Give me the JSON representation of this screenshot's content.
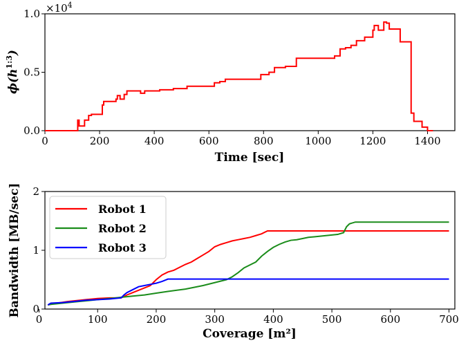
{
  "chart_data": [
    {
      "type": "line",
      "title": "",
      "xlabel": "Time [sec]",
      "ylabel": "ϕ(h^{1:3})",
      "y_multiplier_label": "×10",
      "y_multiplier_exp": "4",
      "xlim": [
        0,
        1500
      ],
      "ylim": [
        0,
        1.0
      ],
      "xticks": [
        0,
        200,
        400,
        600,
        800,
        1000,
        1200,
        1400
      ],
      "yticks": [
        0.0,
        0.5,
        1.0
      ],
      "ytick_labels": [
        "0.0",
        "0.5",
        "1.0"
      ],
      "color": "#ff0000",
      "series": [
        {
          "step": true,
          "x": [
            0,
            120,
            125,
            145,
            160,
            170,
            210,
            215,
            260,
            265,
            275,
            290,
            300,
            350,
            365,
            420,
            470,
            520,
            620,
            640,
            660,
            780,
            790,
            820,
            840,
            880,
            920,
            1060,
            1080,
            1100,
            1120,
            1140,
            1170,
            1200,
            1205,
            1220,
            1240,
            1250,
            1260,
            1300,
            1340,
            1350,
            1380,
            1400,
            1420
          ],
          "y": [
            0,
            0.09,
            0.04,
            0.09,
            0.13,
            0.14,
            0.22,
            0.25,
            0.27,
            0.3,
            0.27,
            0.31,
            0.34,
            0.32,
            0.34,
            0.35,
            0.36,
            0.38,
            0.41,
            0.42,
            0.44,
            0.44,
            0.48,
            0.5,
            0.54,
            0.55,
            0.62,
            0.64,
            0.7,
            0.71,
            0.73,
            0.77,
            0.8,
            0.86,
            0.9,
            0.86,
            0.93,
            0.92,
            0.87,
            0.76,
            0.15,
            0.08,
            0.03,
            0.0,
            0.0
          ]
        }
      ]
    },
    {
      "type": "line",
      "title": "",
      "xlabel": "Coverage [m²]",
      "ylabel": "Bandwidth [MB/sec]",
      "xlim": [
        10,
        710
      ],
      "ylim": [
        0,
        2
      ],
      "xticks": [
        0,
        100,
        200,
        300,
        400,
        500,
        600,
        700
      ],
      "yticks": [
        0,
        1,
        2
      ],
      "legend": "top-left",
      "series": [
        {
          "name": "Robot 1",
          "color": "#ff0000",
          "x": [
            15,
            20,
            30,
            50,
            80,
            100,
            120,
            140,
            150,
            160,
            170,
            180,
            190,
            200,
            210,
            220,
            230,
            240,
            250,
            260,
            270,
            280,
            290,
            300,
            310,
            320,
            330,
            340,
            350,
            360,
            370,
            380,
            390,
            700
          ],
          "y": [
            0.07,
            0.08,
            0.1,
            0.13,
            0.16,
            0.18,
            0.19,
            0.19,
            0.24,
            0.28,
            0.32,
            0.36,
            0.4,
            0.5,
            0.58,
            0.63,
            0.66,
            0.71,
            0.76,
            0.8,
            0.86,
            0.92,
            0.98,
            1.06,
            1.1,
            1.13,
            1.16,
            1.18,
            1.2,
            1.22,
            1.25,
            1.28,
            1.33,
            1.33
          ]
        },
        {
          "name": "Robot 2",
          "color": "#1a8c1a",
          "x": [
            15,
            20,
            40,
            60,
            80,
            100,
            120,
            140,
            160,
            180,
            200,
            220,
            250,
            280,
            300,
            320,
            330,
            340,
            350,
            360,
            370,
            380,
            390,
            400,
            410,
            420,
            430,
            440,
            450,
            460,
            470,
            480,
            490,
            500,
            510,
            520,
            525,
            530,
            540,
            700
          ],
          "y": [
            0.07,
            0.08,
            0.1,
            0.12,
            0.14,
            0.16,
            0.18,
            0.2,
            0.22,
            0.24,
            0.27,
            0.3,
            0.34,
            0.4,
            0.45,
            0.5,
            0.55,
            0.62,
            0.7,
            0.75,
            0.8,
            0.9,
            0.98,
            1.05,
            1.1,
            1.14,
            1.17,
            1.18,
            1.2,
            1.22,
            1.23,
            1.24,
            1.25,
            1.26,
            1.27,
            1.3,
            1.4,
            1.45,
            1.48,
            1.48
          ]
        },
        {
          "name": "Robot 3",
          "color": "#0000ff",
          "x": [
            15,
            20,
            40,
            60,
            80,
            100,
            120,
            140,
            145,
            150,
            160,
            170,
            180,
            190,
            200,
            210,
            220,
            700
          ],
          "y": [
            0.07,
            0.1,
            0.11,
            0.13,
            0.15,
            0.16,
            0.17,
            0.19,
            0.24,
            0.28,
            0.33,
            0.38,
            0.4,
            0.42,
            0.44,
            0.47,
            0.51,
            0.51
          ]
        }
      ]
    }
  ]
}
